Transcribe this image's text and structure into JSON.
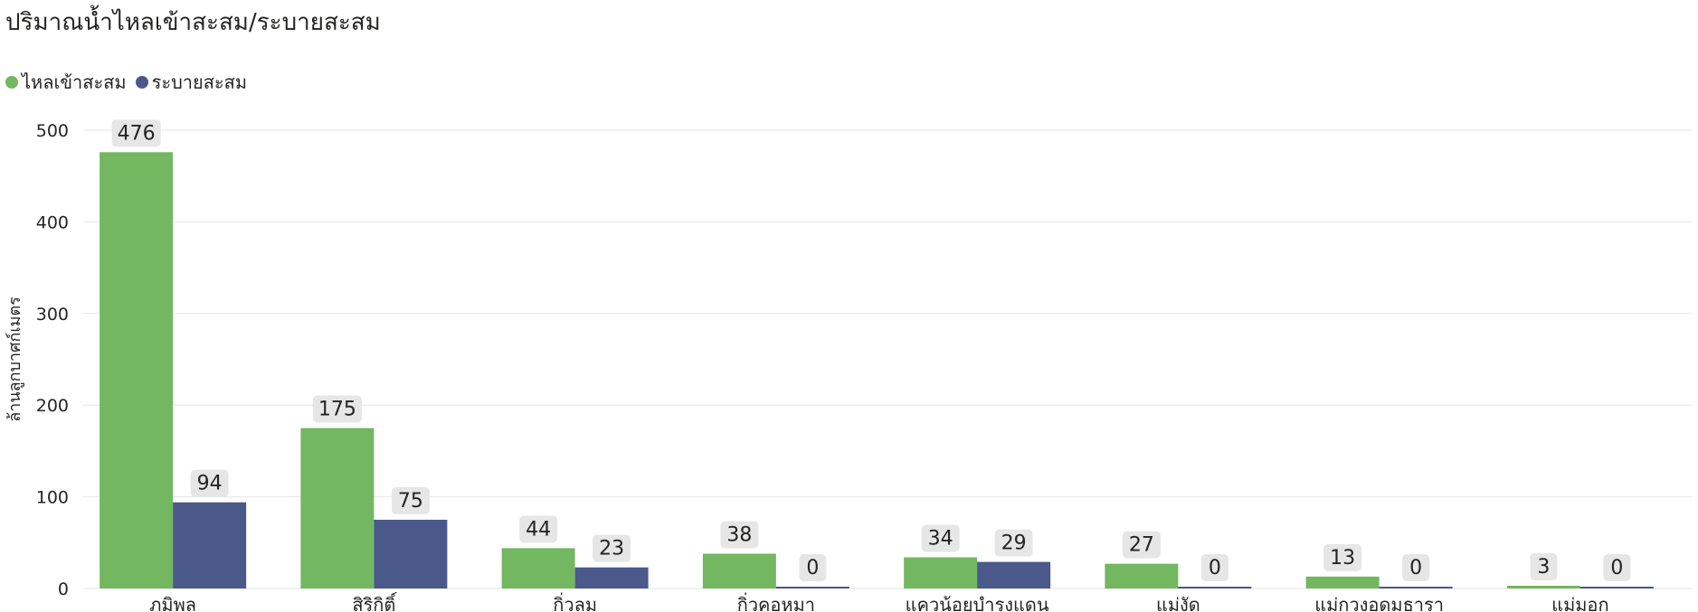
{
  "title": "ปริมาณน้ำไหลเข้าสะสม/ระบายสะสม",
  "colors": {
    "inflow": "#73b761",
    "outflow": "#4a588a",
    "gridline": "#e6e6e6",
    "label_box": "#e6e6e6",
    "text": "#252423"
  },
  "chart_data": {
    "type": "bar",
    "categories": [
      "ภูมิพล",
      "สิริกิติ์",
      "กิ่วลม",
      "กิ่วคอหมา",
      "แควน้อยบำรุงแดน",
      "แม่งัด",
      "แม่กวงอุดมธารา",
      "แม่มอก"
    ],
    "series": [
      {
        "name": "ไหลเข้าสะสม",
        "values": [
          476,
          175,
          44,
          38,
          34,
          27,
          13,
          3
        ]
      },
      {
        "name": "ระบายสะสม",
        "values": [
          94,
          75,
          23,
          0,
          29,
          0,
          0,
          0
        ]
      }
    ],
    "ylabel": "ล้านลูกบาศก์เมตร",
    "xlabel": "",
    "ylim": [
      0,
      500
    ],
    "yticks": [
      0,
      100,
      200,
      300,
      400,
      500
    ],
    "grid": true,
    "legend_position": "top-left",
    "data_labels": true
  }
}
